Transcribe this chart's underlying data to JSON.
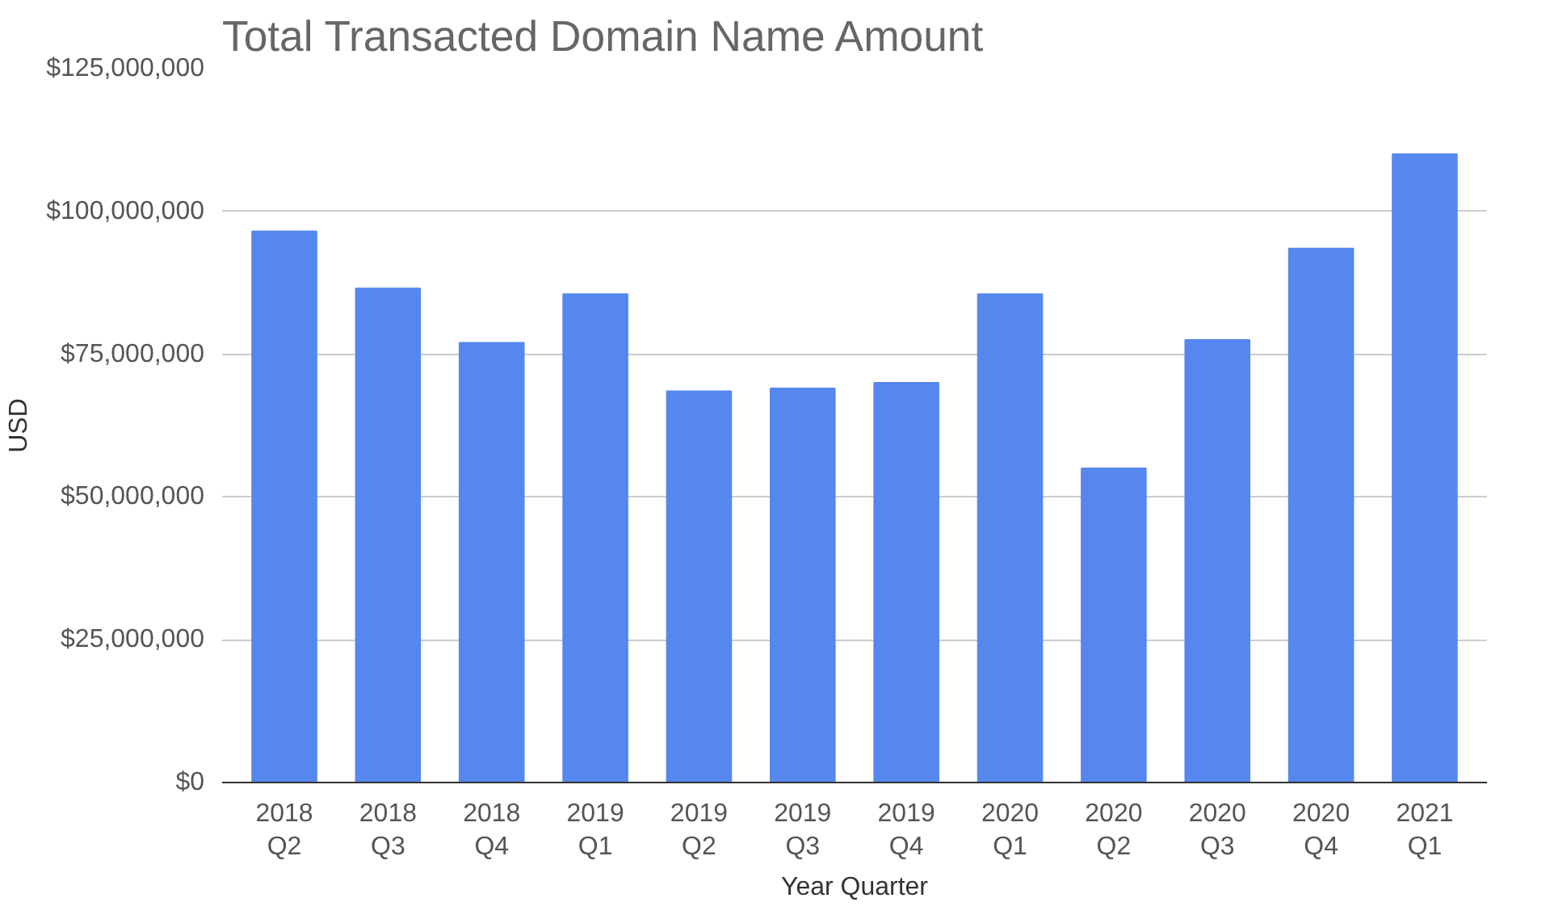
{
  "chart_data": {
    "type": "bar",
    "title": "Total Transacted Domain Name Amount",
    "xlabel": "Year Quarter",
    "ylabel": "USD",
    "categories": [
      "2018\nQ2",
      "2018\nQ3",
      "2018\nQ4",
      "2019\nQ1",
      "2019\nQ2",
      "2019\nQ3",
      "2019\nQ4",
      "2020\nQ1",
      "2020\nQ2",
      "2020\nQ3",
      "2020\nQ4",
      "2021\nQ1"
    ],
    "values": [
      96500000,
      86500000,
      77000000,
      85500000,
      68500000,
      69000000,
      70000000,
      85500000,
      55000000,
      77500000,
      93500000,
      110000000
    ],
    "color": "#5587ee",
    "ylim": [
      0,
      125000000
    ],
    "yticks": [
      {
        "value": 0,
        "label": "$0"
      },
      {
        "value": 25000000,
        "label": "$25,000,000"
      },
      {
        "value": 50000000,
        "label": "$50,000,000"
      },
      {
        "value": 75000000,
        "label": "$75,000,000"
      },
      {
        "value": 100000000,
        "label": "$100,000,000"
      },
      {
        "value": 125000000,
        "label": "$125,000,000"
      }
    ],
    "grid": "y"
  }
}
